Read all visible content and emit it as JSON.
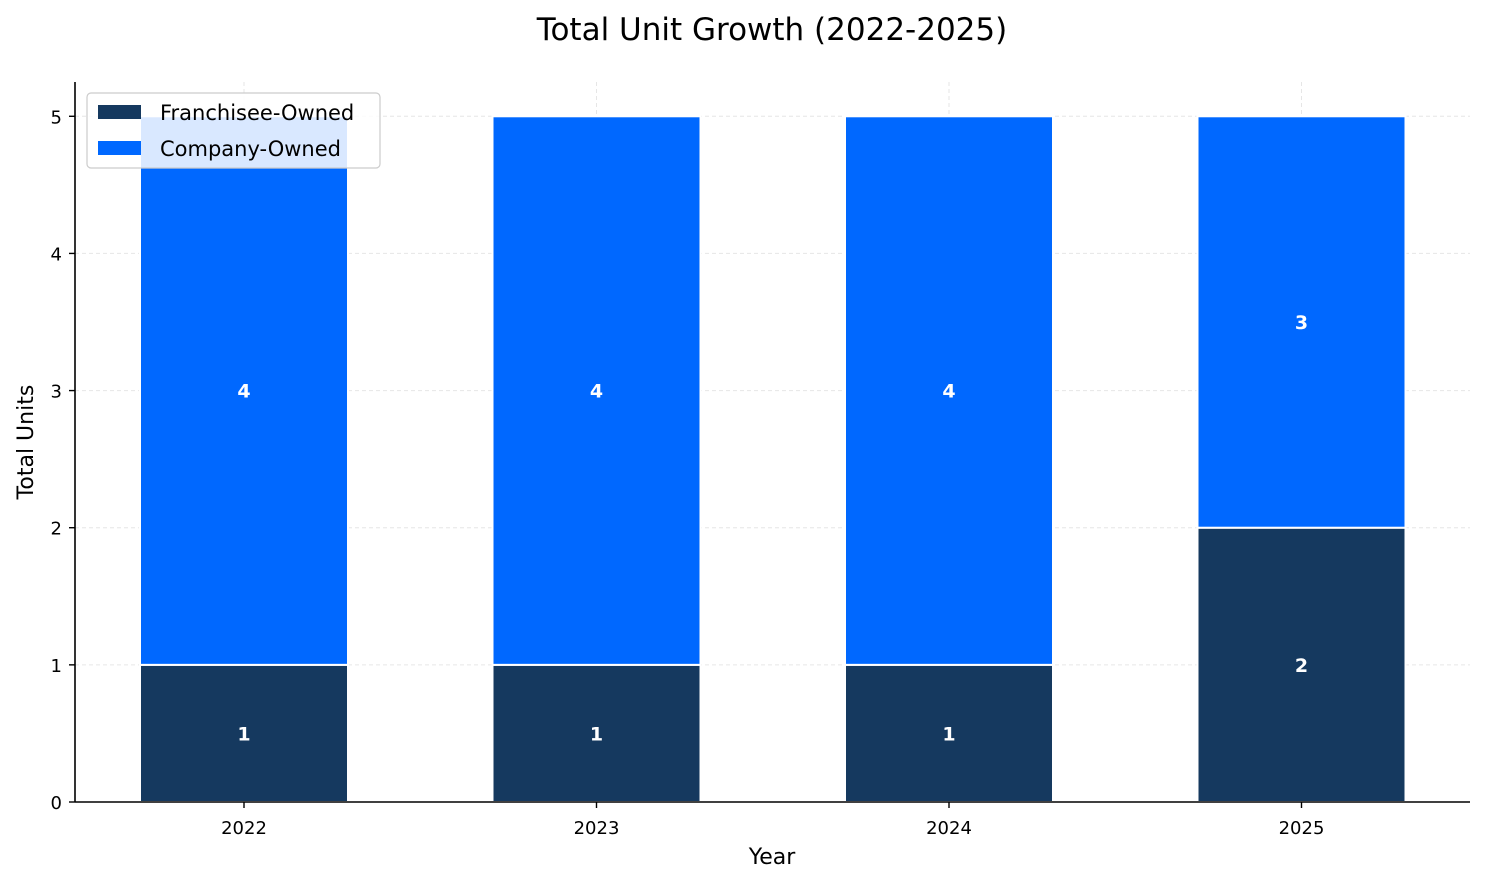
{
  "chart_data": {
    "type": "bar",
    "stacked": true,
    "title": "Total Unit Growth (2022-2025)",
    "xlabel": "Year",
    "ylabel": "Total Units",
    "categories": [
      "2022",
      "2023",
      "2024",
      "2025"
    ],
    "series": [
      {
        "name": "Franchisee-Owned",
        "values": [
          1,
          1,
          1,
          2
        ],
        "color": "#15395f"
      },
      {
        "name": "Company-Owned",
        "values": [
          4,
          4,
          4,
          3
        ],
        "color": "#0068ff"
      }
    ],
    "ylim": [
      0,
      5.25
    ],
    "yticks": [
      "0",
      "1",
      "2",
      "3",
      "4",
      "5"
    ],
    "grid": true,
    "legend": "upper-left"
  }
}
